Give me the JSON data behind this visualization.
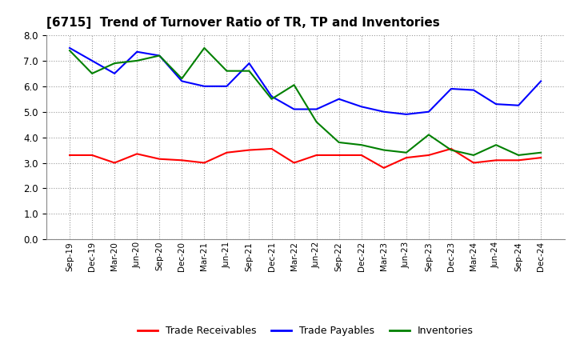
{
  "title": "[6715]  Trend of Turnover Ratio of TR, TP and Inventories",
  "x_labels": [
    "Sep-19",
    "Dec-19",
    "Mar-20",
    "Jun-20",
    "Sep-20",
    "Dec-20",
    "Mar-21",
    "Jun-21",
    "Sep-21",
    "Dec-21",
    "Mar-22",
    "Jun-22",
    "Sep-22",
    "Dec-22",
    "Mar-23",
    "Jun-23",
    "Sep-23",
    "Dec-23",
    "Mar-24",
    "Jun-24",
    "Sep-24",
    "Dec-24"
  ],
  "trade_receivables": [
    3.3,
    3.3,
    3.0,
    3.35,
    3.15,
    3.1,
    3.0,
    3.4,
    3.5,
    3.55,
    3.0,
    3.3,
    3.3,
    3.3,
    2.8,
    3.2,
    3.3,
    3.55,
    3.0,
    3.1,
    3.1,
    3.2
  ],
  "trade_payables": [
    7.5,
    7.0,
    6.5,
    7.35,
    7.2,
    6.2,
    6.0,
    6.0,
    6.9,
    5.6,
    5.1,
    5.1,
    5.5,
    5.2,
    5.0,
    4.9,
    5.0,
    5.9,
    5.85,
    5.3,
    5.25,
    6.2
  ],
  "inventories": [
    7.4,
    6.5,
    6.9,
    7.0,
    7.2,
    6.3,
    7.5,
    6.6,
    6.6,
    5.5,
    6.05,
    4.6,
    3.8,
    3.7,
    3.5,
    3.4,
    4.1,
    3.5,
    3.3,
    3.7,
    3.3,
    3.4
  ],
  "ylim": [
    0.0,
    8.0
  ],
  "yticks": [
    0.0,
    1.0,
    2.0,
    3.0,
    4.0,
    5.0,
    6.0,
    7.0,
    8.0
  ],
  "tr_color": "#ff0000",
  "tp_color": "#0000ff",
  "inv_color": "#008000",
  "legend_labels": [
    "Trade Receivables",
    "Trade Payables",
    "Inventories"
  ],
  "background_color": "#ffffff",
  "grid_color": "#999999"
}
